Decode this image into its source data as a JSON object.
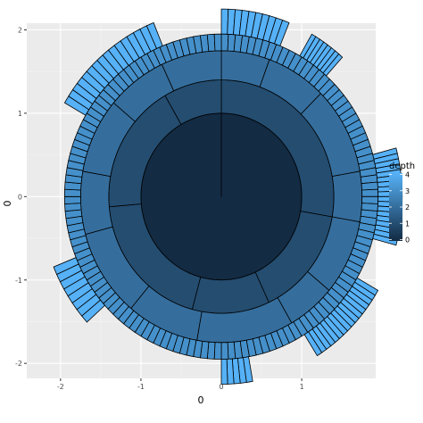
{
  "chart_data": {
    "type": "sunburst",
    "xlabel": "0",
    "ylabel": "0",
    "xlim": [
      -2.42,
      1.92
    ],
    "ylim": [
      -2.18,
      2.08
    ],
    "x_ticks": [
      -2,
      -1,
      0,
      1
    ],
    "x_tick_labels": [
      "-2",
      "-1",
      "0",
      "1"
    ],
    "y_ticks": [
      -2,
      -1,
      0,
      1,
      2
    ],
    "y_tick_labels": [
      "-2",
      "-1",
      "0",
      "1",
      "2"
    ],
    "grid": true,
    "legend": {
      "title": "depth",
      "position": "right",
      "min": 0,
      "max": 4,
      "ticks": [
        0,
        1,
        2,
        3,
        4
      ],
      "tick_labels": [
        "0",
        "1",
        "2",
        "3",
        "4"
      ],
      "color_low": "#132B43",
      "color_high": "#56B1F7"
    },
    "rings": [
      {
        "depth": 0,
        "r_inner": 0.0,
        "r_outer": 1.0,
        "segments": [
          360
        ]
      },
      {
        "depth": 1,
        "r_inner": 1.0,
        "r_outer": 1.4,
        "segments": [
          100,
          55,
          40,
          70,
          65,
          30
        ]
      },
      {
        "depth": 2,
        "r_inner": 1.4,
        "r_outer": 1.75,
        "segments": [
          20,
          25,
          35,
          20,
          30,
          20,
          40,
          30,
          35,
          25,
          30,
          25,
          25
        ]
      },
      {
        "depth": 3,
        "r_inner": 1.75,
        "r_outer": 1.95,
        "arcs": [
          [
            0,
            360,
            140
          ]
        ]
      },
      {
        "depth": 4,
        "r_inner": 1.95,
        "r_outer": 2.25,
        "arcs": [
          [
            0,
            22,
            10
          ],
          [
            30,
            42,
            8
          ],
          [
            75,
            105,
            18
          ],
          [
            120,
            148,
            16
          ],
          [
            170,
            180,
            5
          ],
          [
            228,
            248,
            8
          ],
          [
            300,
            338,
            16
          ]
        ]
      }
    ]
  }
}
